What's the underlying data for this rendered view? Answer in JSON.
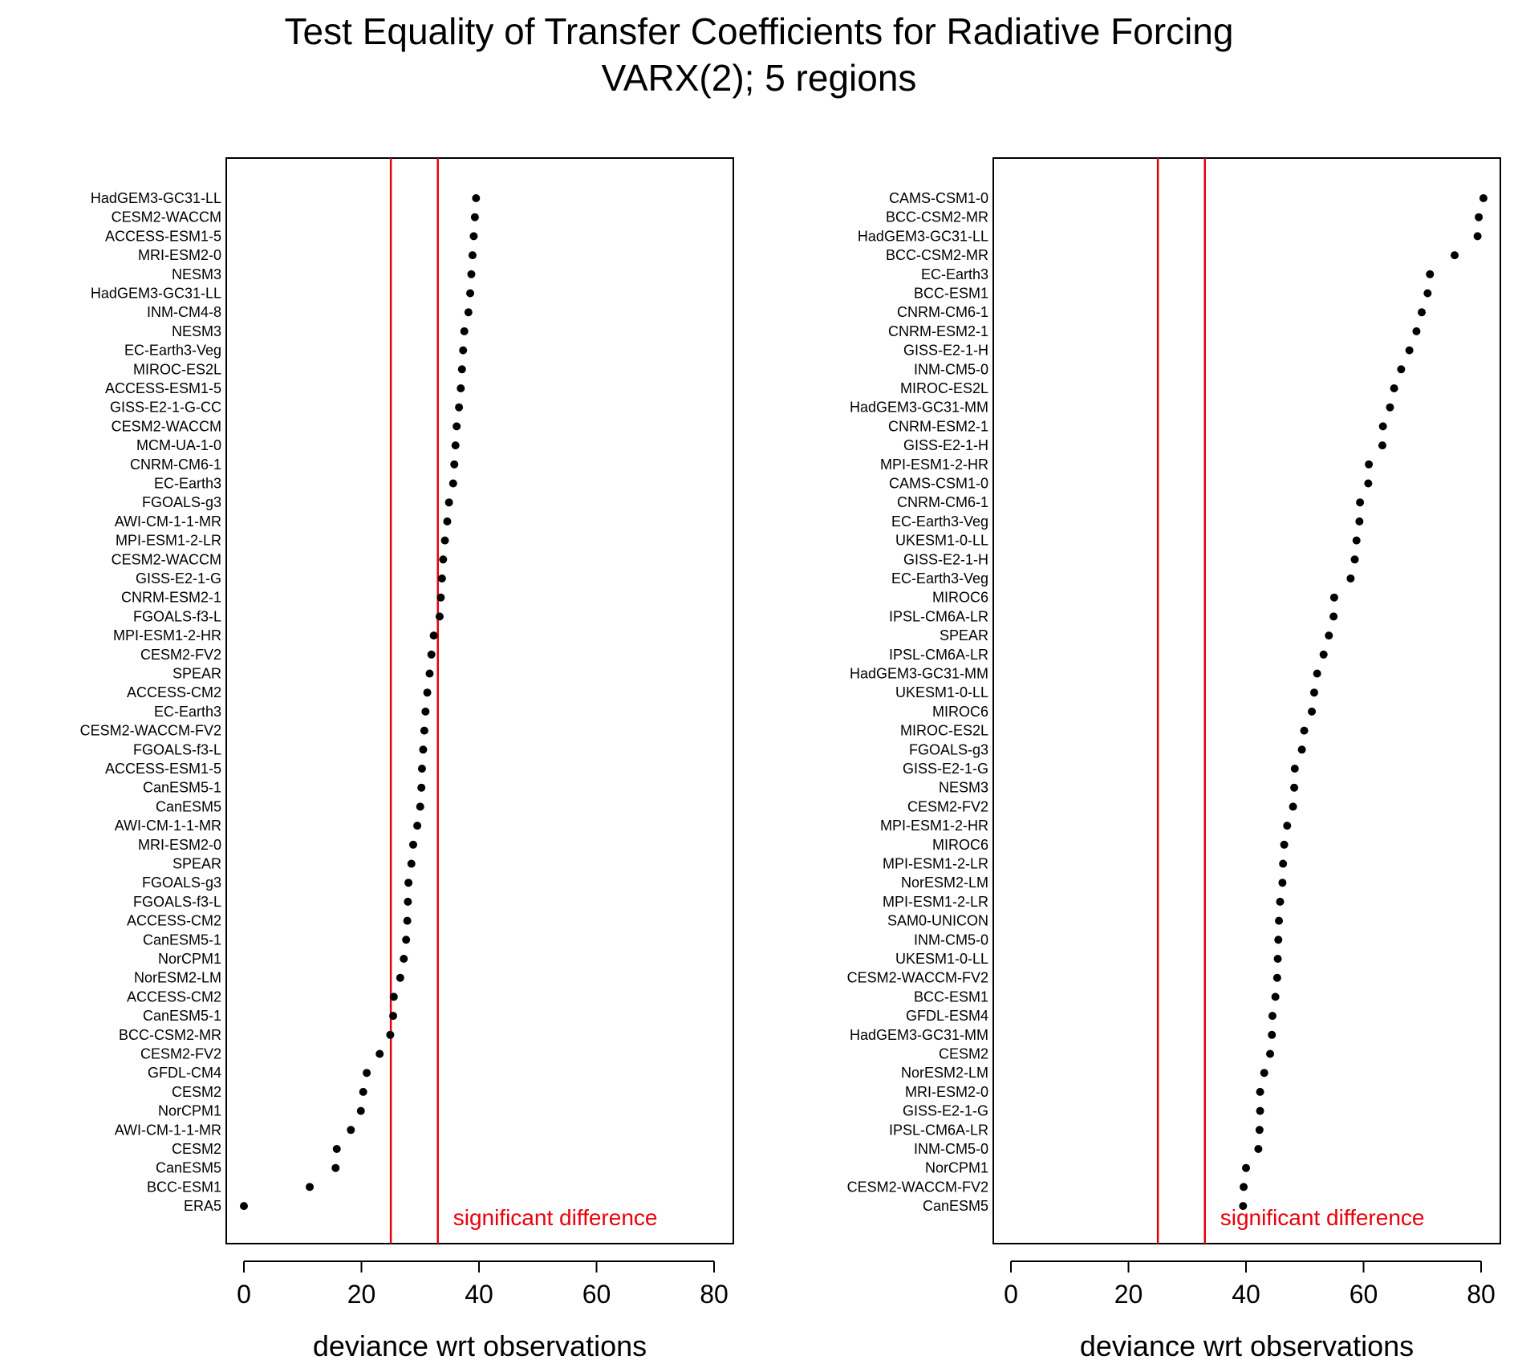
{
  "title": "Test Equality of Transfer Coefficients for Radiative Forcing",
  "subtitle": "VARX(2); 5 regions",
  "colors": {
    "critical_line": "#e8000b",
    "point": "#000000",
    "annotation": "#e8000b"
  },
  "chart_data": [
    {
      "type": "scatter",
      "title": "Test Equality of Transfer Coefficients for Radiative Forcing",
      "subtitle": "VARX(2); 5 regions",
      "xlabel": "deviance wrt observations",
      "ylabel": "",
      "xlim": [
        0,
        80
      ],
      "xticks": [
        0,
        20,
        40,
        60,
        80
      ],
      "grid": false,
      "critical_lines": [
        25.0,
        33.0
      ],
      "annotation": "significant difference",
      "points": [
        {
          "label": "HadGEM3-GC31-LL",
          "value": 39.5
        },
        {
          "label": "CESM2-WACCM",
          "value": 39.3
        },
        {
          "label": "ACCESS-ESM1-5",
          "value": 39.1
        },
        {
          "label": "MRI-ESM2-0",
          "value": 38.9
        },
        {
          "label": "NESM3",
          "value": 38.7
        },
        {
          "label": "HadGEM3-GC31-LL",
          "value": 38.5
        },
        {
          "label": "INM-CM4-8",
          "value": 38.2
        },
        {
          "label": "NESM3",
          "value": 37.5
        },
        {
          "label": "EC-Earth3-Veg",
          "value": 37.3
        },
        {
          "label": "MIROC-ES2L",
          "value": 37.1
        },
        {
          "label": "ACCESS-ESM1-5",
          "value": 36.9
        },
        {
          "label": "GISS-E2-1-G-CC",
          "value": 36.6
        },
        {
          "label": "CESM2-WACCM",
          "value": 36.2
        },
        {
          "label": "MCM-UA-1-0",
          "value": 36.0
        },
        {
          "label": "CNRM-CM6-1",
          "value": 35.8
        },
        {
          "label": "EC-Earth3",
          "value": 35.6
        },
        {
          "label": "FGOALS-g3",
          "value": 34.9
        },
        {
          "label": "AWI-CM-1-1-MR",
          "value": 34.6
        },
        {
          "label": "MPI-ESM1-2-LR",
          "value": 34.2
        },
        {
          "label": "CESM2-WACCM",
          "value": 33.9
        },
        {
          "label": "GISS-E2-1-G",
          "value": 33.7
        },
        {
          "label": "CNRM-ESM2-1",
          "value": 33.5
        },
        {
          "label": "FGOALS-f3-L",
          "value": 33.3
        },
        {
          "label": "MPI-ESM1-2-HR",
          "value": 32.3
        },
        {
          "label": "CESM2-FV2",
          "value": 31.9
        },
        {
          "label": "SPEAR",
          "value": 31.6
        },
        {
          "label": "ACCESS-CM2",
          "value": 31.2
        },
        {
          "label": "EC-Earth3",
          "value": 30.9
        },
        {
          "label": "CESM2-WACCM-FV2",
          "value": 30.7
        },
        {
          "label": "FGOALS-f3-L",
          "value": 30.5
        },
        {
          "label": "ACCESS-ESM1-5",
          "value": 30.3
        },
        {
          "label": "CanESM5-1",
          "value": 30.2
        },
        {
          "label": "CanESM5",
          "value": 30.0
        },
        {
          "label": "AWI-CM-1-1-MR",
          "value": 29.5
        },
        {
          "label": "MRI-ESM2-0",
          "value": 28.8
        },
        {
          "label": "SPEAR",
          "value": 28.5
        },
        {
          "label": "FGOALS-g3",
          "value": 28.0
        },
        {
          "label": "FGOALS-f3-L",
          "value": 27.9
        },
        {
          "label": "ACCESS-CM2",
          "value": 27.8
        },
        {
          "label": "CanESM5-1",
          "value": 27.6
        },
        {
          "label": "NorCPM1",
          "value": 27.2
        },
        {
          "label": "NorESM2-LM",
          "value": 26.6
        },
        {
          "label": "ACCESS-CM2",
          "value": 25.5
        },
        {
          "label": "CanESM5-1",
          "value": 25.4
        },
        {
          "label": "BCC-CSM2-MR",
          "value": 24.9
        },
        {
          "label": "CESM2-FV2",
          "value": 23.1
        },
        {
          "label": "GFDL-CM4",
          "value": 20.9
        },
        {
          "label": "CESM2",
          "value": 20.3
        },
        {
          "label": "NorCPM1",
          "value": 19.9
        },
        {
          "label": "AWI-CM-1-1-MR",
          "value": 18.2
        },
        {
          "label": "CESM2",
          "value": 15.8
        },
        {
          "label": "CanESM5",
          "value": 15.6
        },
        {
          "label": "BCC-ESM1",
          "value": 11.2
        },
        {
          "label": "ERA5",
          "value": 0.0
        }
      ]
    },
    {
      "type": "scatter",
      "title": "Test Equality of Transfer Coefficients for Radiative Forcing",
      "subtitle": "VARX(2); 5 regions",
      "xlabel": "deviance wrt observations",
      "ylabel": "",
      "xlim": [
        0,
        80
      ],
      "xticks": [
        0,
        20,
        40,
        60,
        80
      ],
      "grid": false,
      "critical_lines": [
        25.0,
        33.0
      ],
      "annotation": "significant difference",
      "points": [
        {
          "label": "CAMS-CSM1-0",
          "value": 80.4
        },
        {
          "label": "BCC-CSM2-MR",
          "value": 79.6
        },
        {
          "label": "HadGEM3-GC31-LL",
          "value": 79.4
        },
        {
          "label": "BCC-CSM2-MR",
          "value": 75.5
        },
        {
          "label": "EC-Earth3",
          "value": 71.3
        },
        {
          "label": "BCC-ESM1",
          "value": 70.9
        },
        {
          "label": "CNRM-CM6-1",
          "value": 69.9
        },
        {
          "label": "CNRM-ESM2-1",
          "value": 69.0
        },
        {
          "label": "GISS-E2-1-H",
          "value": 67.8
        },
        {
          "label": "INM-CM5-0",
          "value": 66.4
        },
        {
          "label": "MIROC-ES2L",
          "value": 65.2
        },
        {
          "label": "HadGEM3-GC31-MM",
          "value": 64.5
        },
        {
          "label": "CNRM-ESM2-1",
          "value": 63.3
        },
        {
          "label": "GISS-E2-1-H",
          "value": 63.2
        },
        {
          "label": "MPI-ESM1-2-HR",
          "value": 60.9
        },
        {
          "label": "CAMS-CSM1-0",
          "value": 60.8
        },
        {
          "label": "CNRM-CM6-1",
          "value": 59.4
        },
        {
          "label": "EC-Earth3-Veg",
          "value": 59.3
        },
        {
          "label": "UKESM1-0-LL",
          "value": 58.8
        },
        {
          "label": "GISS-E2-1-H",
          "value": 58.5
        },
        {
          "label": "EC-Earth3-Veg",
          "value": 57.8
        },
        {
          "label": "MIROC6",
          "value": 55.0
        },
        {
          "label": "IPSL-CM6A-LR",
          "value": 54.9
        },
        {
          "label": "SPEAR",
          "value": 54.1
        },
        {
          "label": "IPSL-CM6A-LR",
          "value": 53.2
        },
        {
          "label": "HadGEM3-GC31-MM",
          "value": 52.1
        },
        {
          "label": "UKESM1-0-LL",
          "value": 51.6
        },
        {
          "label": "MIROC6",
          "value": 51.2
        },
        {
          "label": "MIROC-ES2L",
          "value": 49.9
        },
        {
          "label": "FGOALS-g3",
          "value": 49.5
        },
        {
          "label": "GISS-E2-1-G",
          "value": 48.3
        },
        {
          "label": "NESM3",
          "value": 48.2
        },
        {
          "label": "CESM2-FV2",
          "value": 48.0
        },
        {
          "label": "MPI-ESM1-2-HR",
          "value": 47.0
        },
        {
          "label": "MIROC6",
          "value": 46.5
        },
        {
          "label": "MPI-ESM1-2-LR",
          "value": 46.3
        },
        {
          "label": "NorESM2-LM",
          "value": 46.2
        },
        {
          "label": "MPI-ESM1-2-LR",
          "value": 45.8
        },
        {
          "label": "SAM0-UNICON",
          "value": 45.6
        },
        {
          "label": "INM-CM5-0",
          "value": 45.5
        },
        {
          "label": "UKESM1-0-LL",
          "value": 45.4
        },
        {
          "label": "CESM2-WACCM-FV2",
          "value": 45.3
        },
        {
          "label": "BCC-ESM1",
          "value": 45.0
        },
        {
          "label": "GFDL-ESM4",
          "value": 44.5
        },
        {
          "label": "HadGEM3-GC31-MM",
          "value": 44.4
        },
        {
          "label": "CESM2",
          "value": 44.1
        },
        {
          "label": "NorESM2-LM",
          "value": 43.1
        },
        {
          "label": "MRI-ESM2-0",
          "value": 42.4
        },
        {
          "label": "GISS-E2-1-G",
          "value": 42.4
        },
        {
          "label": "IPSL-CM6A-LR",
          "value": 42.3
        },
        {
          "label": "INM-CM5-0",
          "value": 42.1
        },
        {
          "label": "NorCPM1",
          "value": 40.0
        },
        {
          "label": "CESM2-WACCM-FV2",
          "value": 39.6
        },
        {
          "label": "CanESM5",
          "value": 39.5
        }
      ]
    }
  ]
}
